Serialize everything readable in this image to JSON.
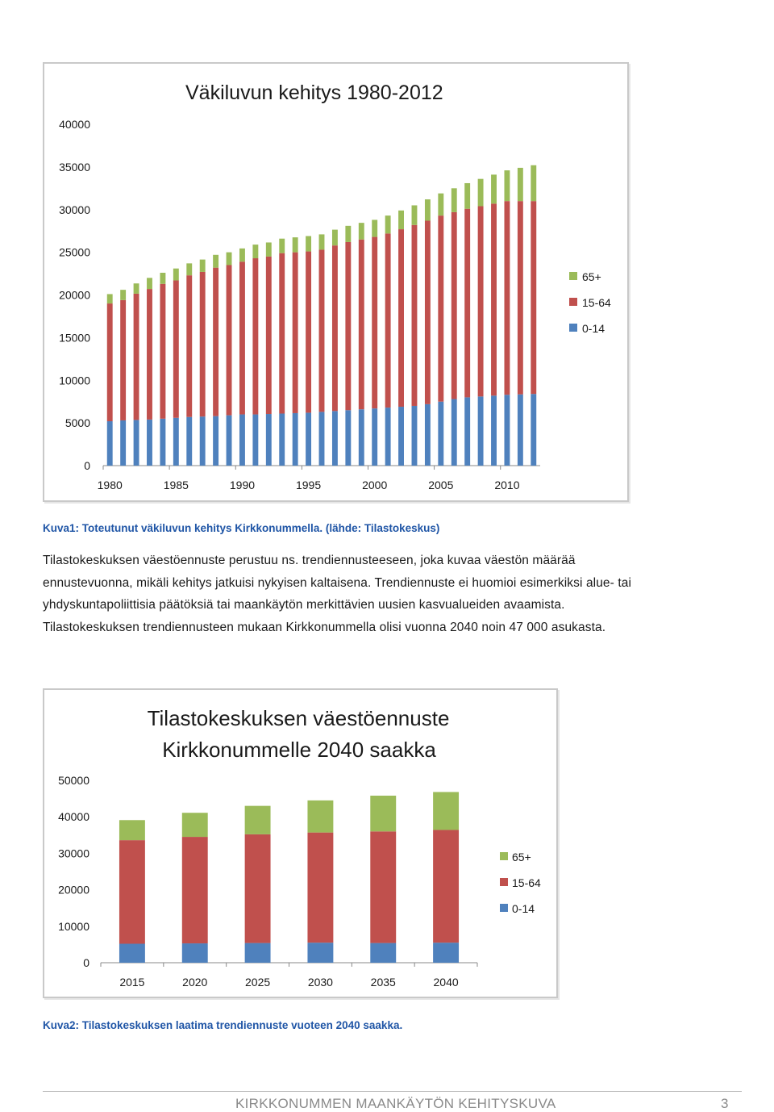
{
  "colors": {
    "age_0_14": "#4f81bd",
    "age_15_64": "#c0504d",
    "age_65_plus": "#9bbb59",
    "caption": "#1f55a6",
    "footer": "#8a8a8a"
  },
  "chart_data": [
    {
      "type": "bar",
      "stacked": true,
      "title": "Väkiluvun kehitys 1980-2012",
      "xlabel": "",
      "ylabel": "",
      "ylim": [
        0,
        40000
      ],
      "yticks": [
        "0",
        "5000",
        "10000",
        "15000",
        "20000",
        "25000",
        "30000",
        "35000",
        "40000"
      ],
      "xtick_labels": [
        "1980",
        "1985",
        "1990",
        "1995",
        "2000",
        "2005",
        "2010"
      ],
      "x": [
        1980,
        1981,
        1982,
        1983,
        1984,
        1985,
        1986,
        1987,
        1988,
        1989,
        1990,
        1991,
        1992,
        1993,
        1994,
        1995,
        1996,
        1997,
        1998,
        1999,
        2000,
        2001,
        2002,
        2003,
        2004,
        2005,
        2006,
        2007,
        2008,
        2009,
        2010,
        2011,
        2012
      ],
      "legend_position": "right",
      "series": [
        {
          "name": "0-14",
          "values": [
            5200,
            5300,
            5350,
            5400,
            5500,
            5600,
            5700,
            5750,
            5800,
            5900,
            6000,
            6000,
            6050,
            6100,
            6150,
            6200,
            6300,
            6400,
            6500,
            6600,
            6700,
            6800,
            6900,
            7000,
            7200,
            7500,
            7800,
            8000,
            8100,
            8200,
            8300,
            8350,
            8400
          ]
        },
        {
          "name": "15-64",
          "values": [
            13800,
            14100,
            14800,
            15300,
            15800,
            16100,
            16600,
            16950,
            17400,
            17600,
            17900,
            18300,
            18450,
            18800,
            18850,
            18900,
            19000,
            19400,
            19700,
            19900,
            20100,
            20400,
            20800,
            21200,
            21500,
            21800,
            21900,
            22100,
            22300,
            22500,
            22700,
            22650,
            22600
          ]
        },
        {
          "name": "65+",
          "values": [
            1100,
            1200,
            1200,
            1300,
            1300,
            1400,
            1400,
            1450,
            1500,
            1500,
            1550,
            1600,
            1650,
            1700,
            1750,
            1800,
            1800,
            1850,
            1900,
            1950,
            2000,
            2100,
            2200,
            2300,
            2500,
            2600,
            2800,
            3000,
            3200,
            3400,
            3600,
            3900,
            4200
          ]
        }
      ]
    },
    {
      "type": "bar",
      "stacked": true,
      "title": "Tilastokeskuksen väestöennuste Kirkkonummelle 2040 saakka",
      "title_lines": [
        "Tilastokeskuksen väestöennuste",
        "Kirkkonummelle 2040 saakka"
      ],
      "xlabel": "",
      "ylabel": "",
      "ylim": [
        0,
        50000
      ],
      "yticks": [
        "0",
        "10000",
        "20000",
        "30000",
        "40000",
        "50000"
      ],
      "categories": [
        "2015",
        "2020",
        "2025",
        "2030",
        "2035",
        "2040"
      ],
      "legend_position": "right",
      "series": [
        {
          "name": "0-14",
          "values": [
            5200,
            5300,
            5400,
            5500,
            5400,
            5500
          ]
        },
        {
          "name": "15-64",
          "values": [
            28400,
            29200,
            29800,
            30200,
            30600,
            30900
          ]
        },
        {
          "name": "65+",
          "values": [
            5500,
            6600,
            7800,
            8800,
            9800,
            10400
          ]
        }
      ]
    }
  ],
  "captions": {
    "figure1": "Kuva1: Toteutunut väkiluvun kehitys Kirkkonummella. (lähde: Tilastokeskus)",
    "figure2": "Kuva2: Tilastokeskuksen laatima trendiennuste vuoteen 2040 saakka."
  },
  "body_lines": [
    "Tilastokeskuksen väestöennuste perustuu ns. trendiennusteeseen, joka kuvaa väestön määrää",
    "ennustevuonna, mikäli kehitys jatkuisi nykyisen kaltaisena. Trendiennuste ei huomioi esimerkiksi alue- tai",
    "yhdyskuntapoliittisia päätöksiä tai maankäytön merkittävien uusien kasvualueiden avaamista.",
    "Tilastokeskuksen trendiennusteen mukaan Kirkkonummella olisi vuonna 2040 noin 47 000 asukasta."
  ],
  "footer": {
    "title": "KIRKKONUMMEN MAANKÄYTÖN KEHITYSKUVA",
    "page_number": "3"
  }
}
